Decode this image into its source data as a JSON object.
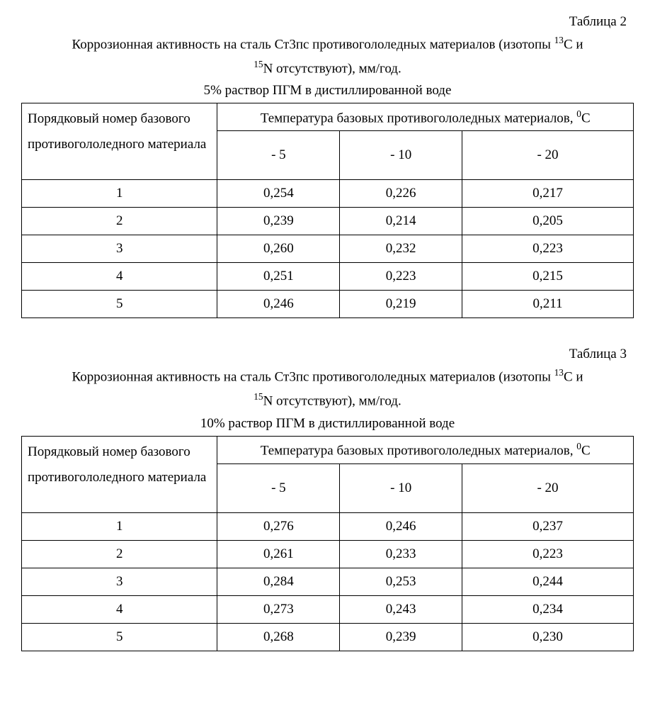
{
  "tables": [
    {
      "label": "Таблица 2",
      "caption_line1": "Коррозионная активность на сталь Ст3пс противогололедных материалов (изотопы ",
      "caption_iso1_sup": "13",
      "caption_iso1_sym": "С и",
      "caption_iso2_sup": "15",
      "caption_iso2_sym": "N отсутствуют), мм/год.",
      "subcaption": "5% раствор ПГМ в дистиллированной воде",
      "rowheader": "Порядковый номер базового противогололедного материала",
      "colgroup_prefix": "Температура базовых противогололедных материалов, ",
      "colgroup_sup": "0",
      "colgroup_unit": "С",
      "cols": [
        "- 5",
        "- 10",
        "- 20"
      ],
      "rows": [
        {
          "idx": "1",
          "v": [
            "0,254",
            "0,226",
            "0,217"
          ]
        },
        {
          "idx": "2",
          "v": [
            "0,239",
            "0,214",
            "0,205"
          ]
        },
        {
          "idx": "3",
          "v": [
            "0,260",
            "0,232",
            "0,223"
          ]
        },
        {
          "idx": "4",
          "v": [
            "0,251",
            "0,223",
            "0,215"
          ]
        },
        {
          "idx": "5",
          "v": [
            "0,246",
            "0,219",
            "0,211"
          ]
        }
      ],
      "col_widths_pct": [
        32,
        20,
        20,
        28
      ],
      "border_color": "#000000",
      "background_color": "#ffffff",
      "font_size_pt": 14
    },
    {
      "label": "Таблица 3",
      "caption_line1": "Коррозионная активность на сталь Ст3пс противогололедных материалов (изотопы ",
      "caption_iso1_sup": "13",
      "caption_iso1_sym": "С и",
      "caption_iso2_sup": "15",
      "caption_iso2_sym": "N отсутствуют), мм/год.",
      "subcaption": "10% раствор ПГМ в дистиллированной воде",
      "rowheader": "Порядковый номер базового противогололедного материала",
      "colgroup_prefix": "Температура базовых противогололедных материалов, ",
      "colgroup_sup": "0",
      "colgroup_unit": "С",
      "cols": [
        "- 5",
        "- 10",
        "- 20"
      ],
      "rows": [
        {
          "idx": "1",
          "v": [
            "0,276",
            "0,246",
            "0,237"
          ]
        },
        {
          "idx": "2",
          "v": [
            "0,261",
            "0,233",
            "0,223"
          ]
        },
        {
          "idx": "3",
          "v": [
            "0,284",
            "0,253",
            "0,244"
          ]
        },
        {
          "idx": "4",
          "v": [
            "0,273",
            "0,243",
            "0,234"
          ]
        },
        {
          "idx": "5",
          "v": [
            "0,268",
            "0,239",
            "0,230"
          ]
        }
      ],
      "col_widths_pct": [
        32,
        20,
        20,
        28
      ],
      "border_color": "#000000",
      "background_color": "#ffffff",
      "font_size_pt": 14
    }
  ]
}
